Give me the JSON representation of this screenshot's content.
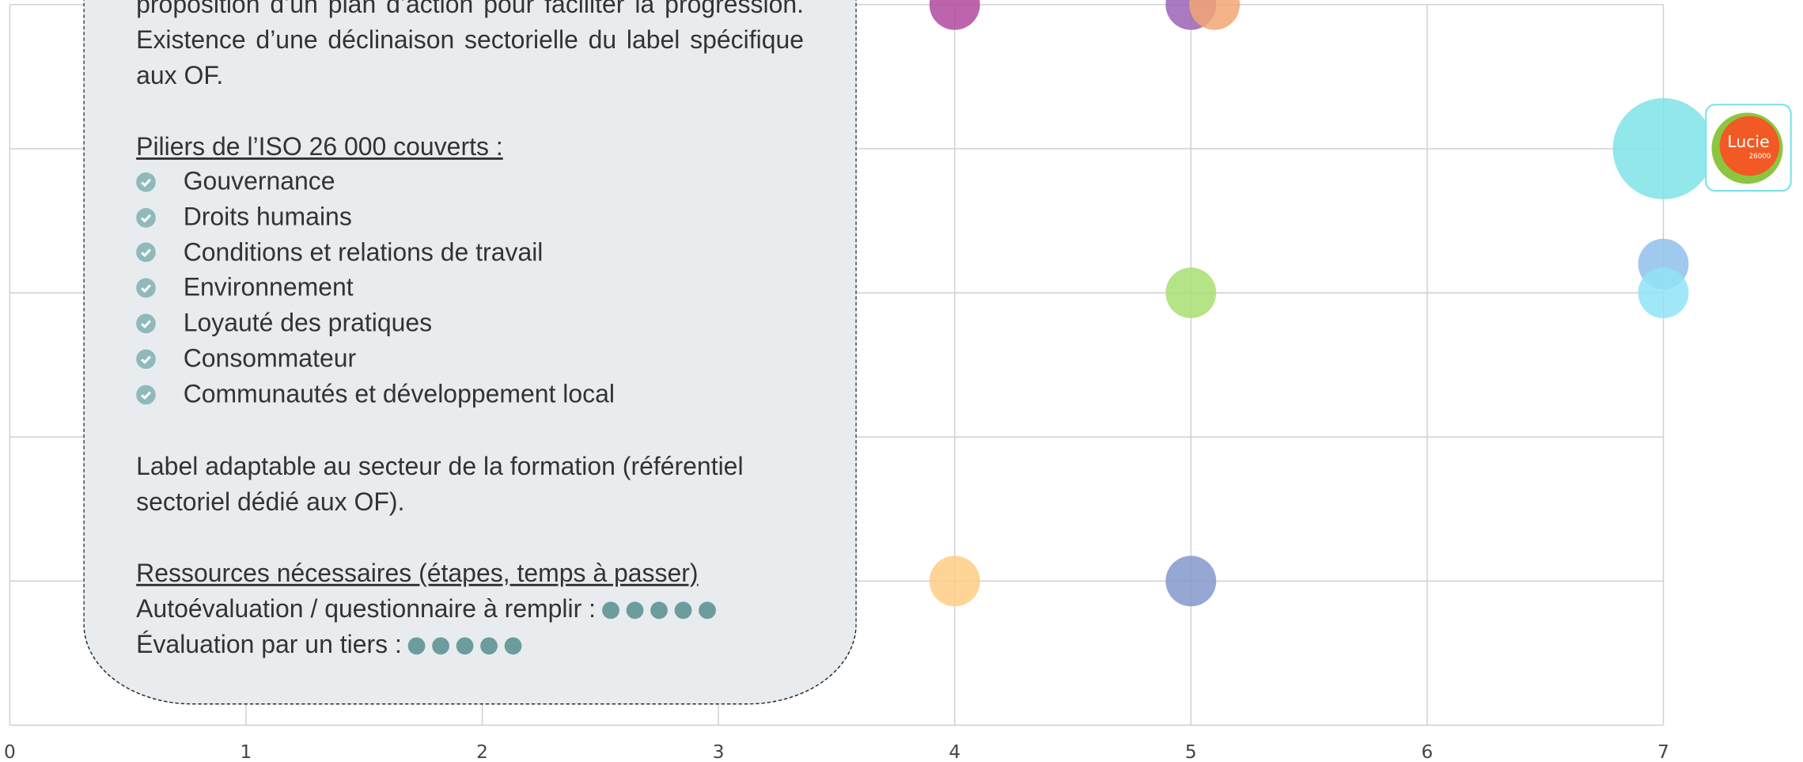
{
  "chart_data": {
    "type": "bubble",
    "x": [
      4,
      5,
      5.1,
      7,
      7,
      7,
      5,
      4,
      5
    ],
    "values": [
      5,
      5,
      5,
      4,
      3.2,
      3,
      3,
      1,
      1
    ],
    "sizes": [
      1,
      1,
      1,
      4,
      1,
      1,
      1,
      1,
      1
    ],
    "colors": [
      "#b04a9e",
      "#9b62b4",
      "#f2a673",
      "#7fe3e8",
      "#8fbfea",
      "#8fe3f7",
      "#a8df72",
      "#ffcd85",
      "#8399cb"
    ],
    "xlim": [
      0,
      7
    ],
    "xticks": [
      0,
      1,
      2,
      3,
      4,
      5,
      6,
      7
    ],
    "ylim": [
      0,
      5
    ],
    "yticks": [
      0,
      1,
      2,
      3,
      4,
      5
    ],
    "grid": true
  },
  "logo": {
    "name": "Lucie",
    "number": "26000"
  },
  "popup": {
    "intro": "proposition d’un plan d’action pour faciliter la progression. Existence d’une déclinaison sectorielle du label spécifique aux OF.",
    "pillars_title": "Piliers de l’ISO 26 000 couverts :",
    "pillars": [
      "Gouvernance",
      "Droits humains",
      "Conditions et relations de travail",
      "Environnement",
      "Loyauté des pratiques",
      "Consommateur",
      "Communautés et développement local"
    ],
    "adaptable": "Label adaptable au secteur de la formation (référentiel sectoriel dédié aux OF).",
    "resources_title": "Ressources nécessaires (étapes, temps à passer)",
    "resources": [
      {
        "label": "Autoévaluation / questionnaire à remplir :",
        "rating": 5
      },
      {
        "label": "Évaluation par un tiers :",
        "rating": 5
      }
    ]
  }
}
